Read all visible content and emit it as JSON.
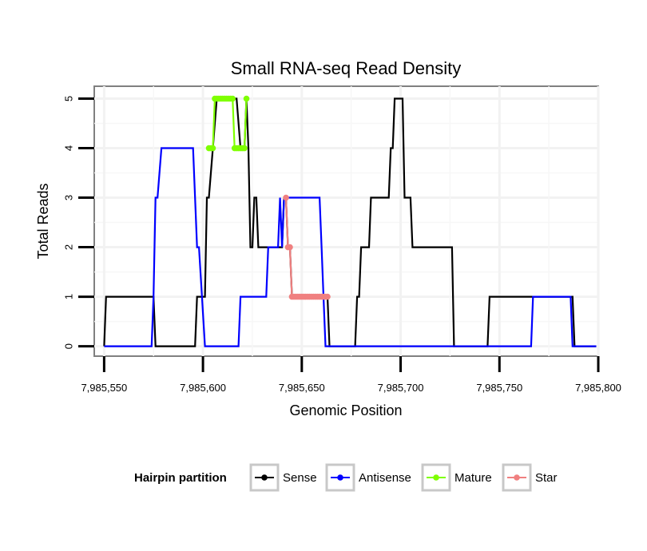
{
  "chart_data": {
    "type": "line",
    "title": "Small RNA-seq Read Density",
    "xlabel": "Genomic Position",
    "ylabel": "Total Reads",
    "xlim": [
      7985545,
      7985800
    ],
    "ylim": [
      -0.2,
      5.25
    ],
    "x_ticks": [
      7985550,
      7985600,
      7985650,
      7985700,
      7985750,
      7985800
    ],
    "x_tick_labels": [
      "7,985,550",
      "7,985,600",
      "7,985,650",
      "7,985,700",
      "7,985,750",
      "7,985,800"
    ],
    "y_ticks": [
      0,
      1,
      2,
      3,
      4,
      5
    ],
    "y_tick_labels": [
      "0",
      "1",
      "2",
      "3",
      "4",
      "5"
    ],
    "grid": true,
    "legend": {
      "title": "Hairpin partition",
      "position": "bottom",
      "entries": [
        "Sense",
        "Antisense",
        "Mature",
        "Star"
      ]
    },
    "series": [
      {
        "name": "Sense",
        "color": "#000000",
        "style": "line",
        "x": [
          7985550,
          7985551,
          7985575,
          7985576,
          7985596,
          7985597,
          7985601,
          7985602,
          7985603,
          7985605,
          7985607,
          7985609,
          7985617,
          7985619,
          7985621,
          7985622,
          7985623,
          7985624,
          7985625,
          7985626,
          7985627,
          7985628,
          7985629,
          7985630,
          7985640,
          7985641,
          7985642,
          7985643,
          7985644,
          7985645,
          7985663,
          7985664,
          7985677,
          7985678,
          7985679,
          7985680,
          7985684,
          7985685,
          7985686,
          7985687,
          7985694,
          7985695,
          7985696,
          7985697,
          7985701,
          7985702,
          7985705,
          7985706,
          7985707,
          7985708,
          7985726,
          7985727,
          7985744,
          7985745,
          7985787,
          7985788,
          7985799
        ],
        "values": [
          0,
          1,
          1,
          0,
          0,
          1,
          1,
          3,
          3,
          4,
          5,
          5,
          5,
          4,
          4,
          5,
          4,
          2,
          2,
          3,
          3,
          2,
          2,
          2,
          2,
          3,
          3,
          2,
          2,
          1,
          1,
          0,
          0,
          1,
          1,
          2,
          2,
          3,
          3,
          3,
          3,
          4,
          4,
          5,
          5,
          3,
          3,
          2,
          2,
          2,
          2,
          0,
          0,
          1,
          1,
          0,
          0
        ]
      },
      {
        "name": "Antisense",
        "color": "#0000ff",
        "style": "line",
        "x": [
          7985550,
          7985574,
          7985575,
          7985576,
          7985577,
          7985579,
          7985595,
          7985596,
          7985597,
          7985598,
          7985601,
          7985602,
          7985618,
          7985619,
          7985632,
          7985633,
          7985634,
          7985636,
          7985637,
          7985638,
          7985639,
          7985640,
          7985641,
          7985642,
          7985643,
          7985644,
          7985645,
          7985658,
          7985659,
          7985660,
          7985661,
          7985662,
          7985663,
          7985766,
          7985767,
          7985786,
          7985787,
          7985799
        ],
        "values": [
          0,
          0,
          1,
          3,
          3,
          4,
          4,
          3,
          2,
          2,
          0,
          0,
          0,
          1,
          1,
          2,
          2,
          2,
          2,
          2,
          3,
          2,
          3,
          3,
          3,
          3,
          3,
          3,
          3,
          2,
          1,
          0,
          0,
          0,
          1,
          1,
          0,
          0
        ]
      },
      {
        "name": "Mature",
        "color": "#7fff00",
        "style": "points",
        "x": [
          7985603,
          7985604,
          7985605,
          7985606,
          7985607,
          7985608,
          7985609,
          7985610,
          7985611,
          7985612,
          7985613,
          7985614,
          7985615,
          7985616,
          7985617,
          7985618,
          7985619,
          7985620,
          7985621,
          7985622
        ],
        "values": [
          4,
          4,
          4,
          5,
          5,
          5,
          5,
          5,
          5,
          5,
          5,
          5,
          5,
          4,
          4,
          4,
          4,
          4,
          4,
          5
        ]
      },
      {
        "name": "Star",
        "color": "#f08080",
        "style": "points",
        "x": [
          7985642,
          7985643,
          7985644,
          7985645,
          7985646,
          7985647,
          7985648,
          7985649,
          7985650,
          7985651,
          7985652,
          7985653,
          7985654,
          7985655,
          7985656,
          7985657,
          7985658,
          7985659,
          7985660,
          7985661,
          7985662,
          7985663
        ],
        "values": [
          3,
          2,
          2,
          1,
          1,
          1,
          1,
          1,
          1,
          1,
          1,
          1,
          1,
          1,
          1,
          1,
          1,
          1,
          1,
          1,
          1,
          1
        ]
      }
    ]
  }
}
